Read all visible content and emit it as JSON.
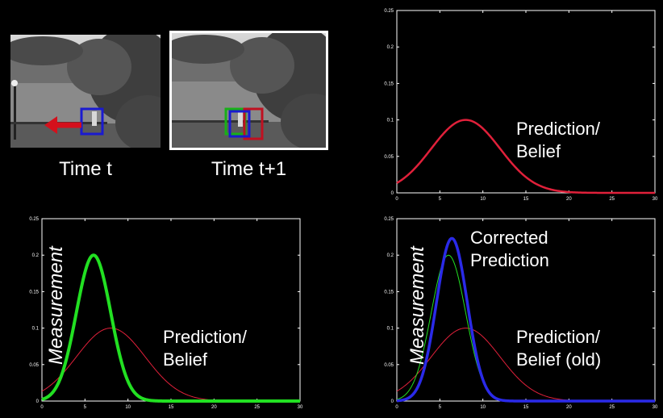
{
  "captions": {
    "left": "Time t",
    "right": "Time t+1"
  },
  "colors": {
    "prediction": "#e0203a",
    "measurement": "#22e022",
    "corrected": "#2a2ae8",
    "box_blue": "#1a1ad0",
    "box_green": "#18b018",
    "box_red": "#c01020",
    "arrow": "#d4101c"
  },
  "labels": {
    "top_right": {
      "line1": "Prediction/",
      "line2": "Belief"
    },
    "bottom_left_rot": "Measurement",
    "bottom_left": {
      "line1": "Prediction/",
      "line2": "Belief"
    },
    "bottom_right_rot": "Measurement",
    "bottom_right_top": {
      "line1": "Corrected",
      "line2": "Prediction"
    },
    "bottom_right": {
      "line1": "Prediction/",
      "line2": "Belief (old)"
    }
  },
  "chart_data": [
    {
      "type": "line",
      "panel": "top-right",
      "xlim": [
        0,
        30
      ],
      "ylim": [
        0,
        0.25
      ],
      "xticks": [
        "0",
        "5",
        "10",
        "15",
        "20",
        "25",
        "30"
      ],
      "yticks": [
        "0",
        "0.05",
        "0.1",
        "0.15",
        "0.2",
        "0.25"
      ],
      "series": [
        {
          "curve": "prediction",
          "mean": 8,
          "sd": 4,
          "peak": 0.1,
          "width": 2.5
        }
      ]
    },
    {
      "type": "line",
      "panel": "bottom-left",
      "xlim": [
        0,
        30
      ],
      "ylim": [
        0,
        0.25
      ],
      "xticks": [
        "0",
        "5",
        "10",
        "15",
        "20",
        "25",
        "30"
      ],
      "yticks": [
        "0",
        "0.05",
        "0.1",
        "0.15",
        "0.2",
        "0.25"
      ],
      "series": [
        {
          "curve": "prediction",
          "mean": 8,
          "sd": 4,
          "peak": 0.1,
          "width": 1
        },
        {
          "curve": "measurement",
          "mean": 6,
          "sd": 2,
          "peak": 0.2,
          "width": 4
        }
      ]
    },
    {
      "type": "line",
      "panel": "bottom-right",
      "xlim": [
        0,
        30
      ],
      "ylim": [
        0,
        0.25
      ],
      "xticks": [
        "0",
        "5",
        "10",
        "15",
        "20",
        "25",
        "30"
      ],
      "yticks": [
        "0",
        "0.05",
        "0.1",
        "0.15",
        "0.2",
        "0.25"
      ],
      "series": [
        {
          "curve": "prediction",
          "mean": 8,
          "sd": 4,
          "peak": 0.1,
          "width": 1
        },
        {
          "curve": "measurement",
          "mean": 6,
          "sd": 2,
          "peak": 0.2,
          "width": 1
        },
        {
          "curve": "corrected",
          "mean": 6.4,
          "sd": 1.79,
          "peak": 0.223,
          "width": 3.5
        }
      ]
    }
  ]
}
